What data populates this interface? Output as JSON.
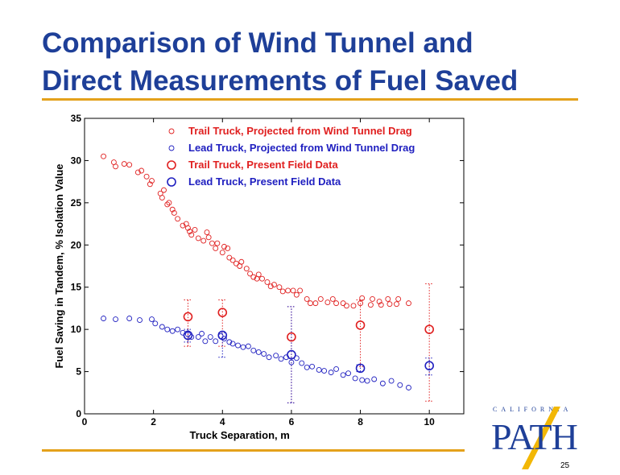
{
  "slide": {
    "title_line1": "Comparison of Wind Tunnel and",
    "title_line2": "Direct Measurements of Fuel Saved",
    "page_number": "25",
    "logo": {
      "top_text": "CALIFORNIA",
      "main_text": "PATH"
    },
    "colors": {
      "title": "#1e3f98",
      "rule": "#e4a11b",
      "trail": "#e02020",
      "lead": "#2020c0"
    }
  },
  "chart_data": {
    "type": "scatter",
    "xlabel": "Truck Separation, m",
    "ylabel": "Fuel Saving in Tandem, % Isolation Value",
    "xlim": [
      0,
      11
    ],
    "ylim": [
      0,
      35
    ],
    "xticks": [
      0,
      2,
      4,
      6,
      8,
      10
    ],
    "yticks": [
      0,
      5,
      10,
      15,
      20,
      25,
      30,
      35
    ],
    "grid": false,
    "legend_position": "top-right",
    "series": [
      {
        "name": "Trail Truck, Projected from Wind Tunnel Drag",
        "marker": "small-circle",
        "color": "#e02020",
        "x": [
          0.55,
          0.85,
          0.9,
          1.15,
          1.3,
          1.55,
          1.65,
          1.8,
          1.9,
          1.95,
          2.2,
          2.25,
          2.3,
          2.4,
          2.45,
          2.55,
          2.6,
          2.7,
          2.85,
          2.95,
          3.0,
          3.05,
          3.1,
          3.2,
          3.3,
          3.45,
          3.55,
          3.6,
          3.7,
          3.8,
          3.85,
          4.0,
          4.05,
          4.15,
          4.2,
          4.3,
          4.4,
          4.5,
          4.55,
          4.7,
          4.8,
          4.9,
          5.0,
          5.05,
          5.15,
          5.3,
          5.4,
          5.5,
          5.65,
          5.75,
          5.9,
          6.05,
          6.15,
          6.25,
          6.45,
          6.55,
          6.7,
          6.85,
          7.05,
          7.2,
          7.3,
          7.5,
          7.6,
          7.8,
          8.0,
          8.05,
          8.3,
          8.35,
          8.55,
          8.6,
          8.8,
          8.85,
          9.05,
          9.1,
          9.4
        ],
        "y": [
          30.5,
          29.8,
          29.3,
          29.6,
          29.5,
          28.6,
          28.8,
          28.1,
          27.2,
          27.6,
          26.1,
          25.6,
          26.5,
          24.8,
          25.0,
          24.2,
          23.8,
          23.1,
          22.3,
          22.5,
          22.0,
          21.6,
          21.2,
          21.8,
          20.8,
          20.5,
          21.5,
          20.9,
          20.2,
          19.6,
          20.2,
          19.1,
          19.8,
          19.6,
          18.5,
          18.2,
          17.8,
          17.5,
          18.0,
          17.2,
          16.6,
          16.2,
          16.0,
          16.5,
          16.0,
          15.6,
          15.1,
          15.3,
          15.0,
          14.5,
          14.6,
          14.6,
          14.1,
          14.6,
          13.6,
          13.1,
          13.1,
          13.6,
          13.2,
          13.6,
          13.1,
          13.1,
          12.8,
          12.8,
          13.1,
          13.7,
          12.9,
          13.6,
          13.3,
          12.9,
          13.6,
          13.0,
          13.0,
          13.6,
          13.1
        ]
      },
      {
        "name": "Lead Truck, Projected from Wind Tunnel Drag",
        "marker": "small-circle",
        "color": "#2020c0",
        "x": [
          0.55,
          0.9,
          1.3,
          1.6,
          1.95,
          2.05,
          2.25,
          2.4,
          2.55,
          2.7,
          2.85,
          3.0,
          3.1,
          3.3,
          3.4,
          3.5,
          3.65,
          3.8,
          3.95,
          4.05,
          4.2,
          4.3,
          4.45,
          4.6,
          4.75,
          4.9,
          5.05,
          5.2,
          5.35,
          5.55,
          5.7,
          5.85,
          6.0,
          6.15,
          6.3,
          6.45,
          6.6,
          6.8,
          6.95,
          7.15,
          7.3,
          7.5,
          7.65,
          7.85,
          8.05,
          8.2,
          8.4,
          8.65,
          8.9,
          9.15,
          9.4
        ],
        "y": [
          11.3,
          11.2,
          11.3,
          11.1,
          11.2,
          10.7,
          10.3,
          10.0,
          9.8,
          10.0,
          9.6,
          9.4,
          9.1,
          9.1,
          9.5,
          8.6,
          9.1,
          8.6,
          9.2,
          8.9,
          8.5,
          8.3,
          8.1,
          7.9,
          8.0,
          7.5,
          7.3,
          7.1,
          6.7,
          6.9,
          6.5,
          6.7,
          6.1,
          6.6,
          6.0,
          5.5,
          5.6,
          5.2,
          5.1,
          4.9,
          5.3,
          4.6,
          4.8,
          4.2,
          4.0,
          3.9,
          4.1,
          3.6,
          3.9,
          3.4,
          3.1
        ]
      },
      {
        "name": "Trail Truck, Present Field Data",
        "marker": "large-circle",
        "color": "#e02020",
        "x": [
          3,
          4,
          6,
          8,
          10
        ],
        "y": [
          11.5,
          12.0,
          9.1,
          10.5,
          10.0
        ],
        "error_low": [
          8.0,
          8.0,
          1.3,
          5.6,
          1.5
        ],
        "error_high": [
          13.5,
          13.5,
          12.7,
          13.5,
          15.4
        ]
      },
      {
        "name": "Lead Truck, Present Field Data",
        "marker": "large-circle",
        "color": "#2020c0",
        "x": [
          3,
          4,
          6,
          8,
          10
        ],
        "y": [
          9.3,
          9.3,
          7.0,
          5.4,
          5.7
        ],
        "error_low": [
          8.5,
          6.7,
          1.3,
          5.0,
          4.6
        ],
        "error_high": [
          10.0,
          9.6,
          12.7,
          5.8,
          6.6
        ]
      }
    ]
  }
}
